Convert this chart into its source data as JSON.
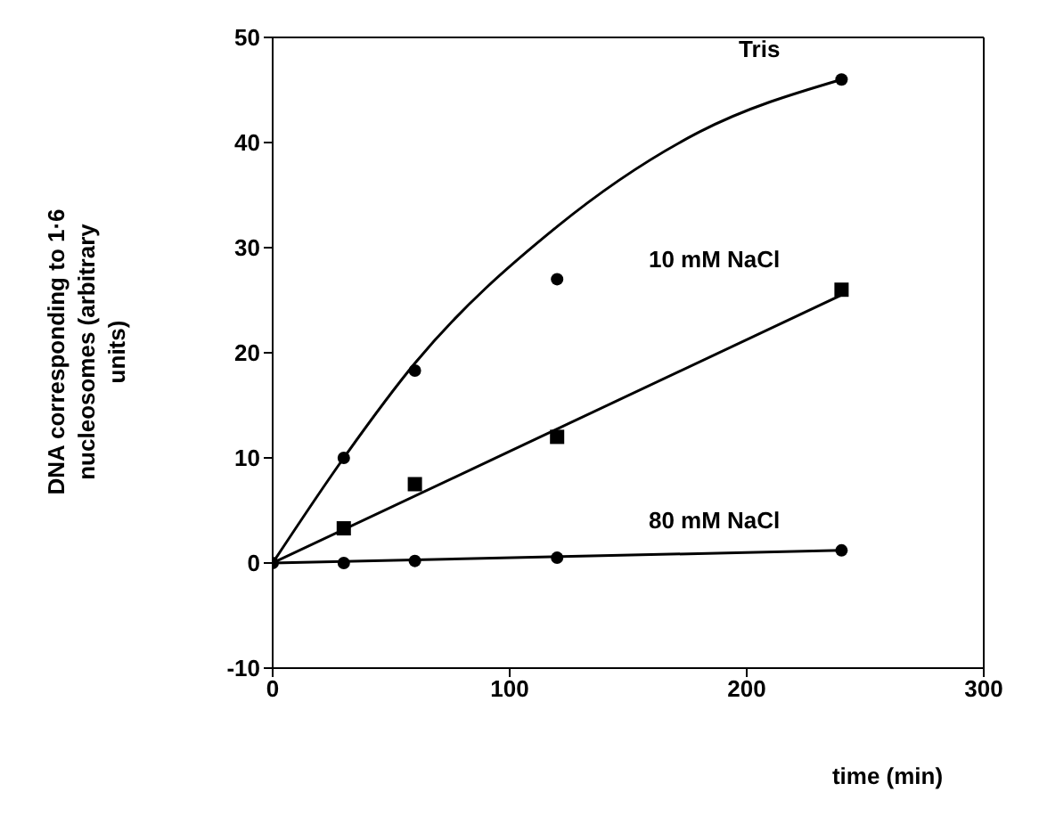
{
  "chart_data": {
    "type": "scatter",
    "xlabel": "time (min)",
    "ylabel": "DNA corresponding to 1·6 nucleosomes (arbitrary units)",
    "xlim": [
      0,
      300
    ],
    "xticks": [
      0,
      100,
      200,
      300
    ],
    "ylim": [
      -10,
      50
    ],
    "yticks": [
      -10,
      0,
      10,
      20,
      30,
      40,
      50
    ],
    "grid": false,
    "legend": false,
    "series": [
      {
        "name": "Tris",
        "type": "scatter",
        "marker": "circle",
        "color": "#000000",
        "x": [
          0,
          30,
          60,
          120,
          240
        ],
        "values": [
          0,
          10,
          18.3,
          27,
          46
        ]
      },
      {
        "name": "10 mM NaCl",
        "type": "scatter",
        "marker": "square",
        "color": "#000000",
        "x": [
          30,
          60,
          120,
          240
        ],
        "values": [
          3.3,
          7.5,
          12,
          26
        ]
      },
      {
        "name": "80 mM NaCl",
        "type": "scatter",
        "marker": "circle",
        "color": "#000000",
        "x": [
          30,
          60,
          120,
          240
        ],
        "values": [
          0,
          0.2,
          0.5,
          1.2
        ]
      },
      {
        "type": "line",
        "marker": "none",
        "color": "#000000",
        "x": [
          0,
          30,
          60,
          120,
          180,
          240
        ],
        "values": [
          0,
          10,
          19,
          32,
          41,
          46
        ]
      },
      {
        "type": "line",
        "marker": "none",
        "color": "#000000",
        "x": [
          0,
          240
        ],
        "values": [
          0,
          25.5
        ]
      },
      {
        "type": "line",
        "marker": "none",
        "color": "#000000",
        "x": [
          0,
          240
        ],
        "values": [
          0,
          1.2
        ]
      }
    ]
  }
}
